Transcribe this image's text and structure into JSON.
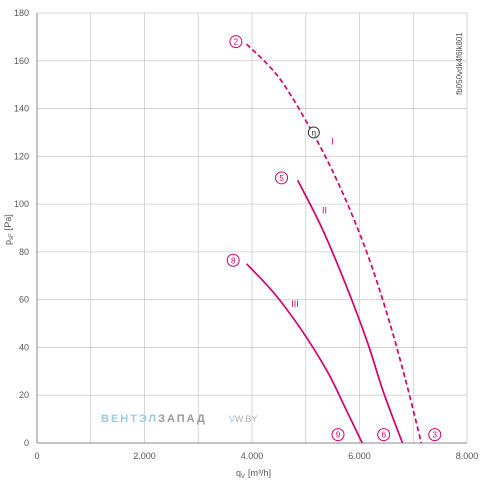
{
  "chart_data": {
    "type": "line",
    "xlabel": "q",
    "xlabel_sub": "V",
    "xlabel_unit": "[m³/h]",
    "ylabel": "p",
    "ylabel_sub": "sF",
    "ylabel_unit": "[Pa]",
    "xlim": [
      0,
      8000
    ],
    "ylim": [
      0,
      180
    ],
    "x_ticks": [
      0,
      2000,
      4000,
      6000,
      8000
    ],
    "x_tick_labels": [
      "0",
      "2.000",
      "4.000",
      "6.000",
      "8.000"
    ],
    "y_ticks": [
      0,
      20,
      40,
      60,
      80,
      100,
      120,
      140,
      160,
      180
    ],
    "y_tick_labels": [
      "0",
      "20",
      "40",
      "60",
      "80",
      "100",
      "120",
      "140",
      "160",
      "180"
    ],
    "grid": true,
    "series": [
      {
        "name": "I",
        "style": "dashed",
        "points": [
          [
            3900,
            167
          ],
          [
            4500,
            153
          ],
          [
            5100,
            131
          ],
          [
            5600,
            109
          ],
          [
            6100,
            82
          ],
          [
            6500,
            55
          ],
          [
            6850,
            27
          ],
          [
            7150,
            0
          ]
        ]
      },
      {
        "name": "II",
        "style": "solid",
        "points": [
          [
            4850,
            110
          ],
          [
            5300,
            90
          ],
          [
            5750,
            66
          ],
          [
            6150,
            42
          ],
          [
            6450,
            21
          ],
          [
            6800,
            0
          ]
        ]
      },
      {
        "name": "III",
        "style": "solid",
        "points": [
          [
            3900,
            75
          ],
          [
            4400,
            63
          ],
          [
            4900,
            48
          ],
          [
            5400,
            30
          ],
          [
            5750,
            14
          ],
          [
            6050,
            0
          ]
        ]
      }
    ],
    "curve_labels": [
      {
        "text": "I",
        "x": 5500,
        "y": 125
      },
      {
        "text": "II",
        "x": 5350,
        "y": 96
      },
      {
        "text": "III",
        "x": 4800,
        "y": 57
      }
    ],
    "markers": [
      {
        "text": "2",
        "x": 3700,
        "y": 168
      },
      {
        "text": "5",
        "x": 4550,
        "y": 111
      },
      {
        "text": "8",
        "x": 3650,
        "y": 76.5
      },
      {
        "text": "9",
        "x": 5600,
        "y": 3.5
      },
      {
        "text": "6",
        "x": 6450,
        "y": 3.5
      },
      {
        "text": "3",
        "x": 7400,
        "y": 3.5
      }
    ],
    "efficiency_marker": {
      "text": "η",
      "x": 5150,
      "y": 130
    },
    "product_code": "fb050vdk4f6lk801",
    "colors": {
      "curve": "#d1006e",
      "grid": "#cccccc",
      "axis": "#888888"
    }
  },
  "watermark": {
    "part1": "ВЕНТЭЛ",
    "part2": "ЗАПАД",
    "part3": "V",
    "part4": "W.BY"
  }
}
